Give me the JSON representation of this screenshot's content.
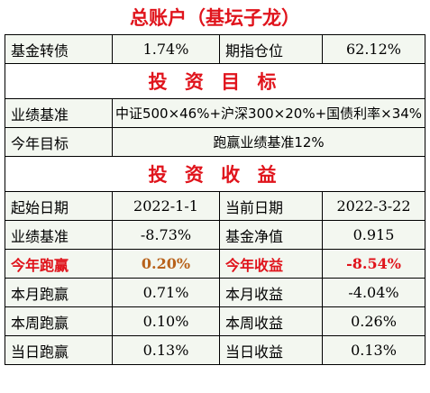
{
  "title": "总账户（基坛子龙）",
  "row1": {
    "label1": "基金转债",
    "value1": "1.74%",
    "label2": "期指仓位",
    "value2": "62.12%"
  },
  "section_target": "投 资 目 标",
  "benchmark": {
    "label": "业绩基准",
    "value": "中证500×46%+沪深300×20%+国债利率×34%"
  },
  "year_goal": {
    "label": "今年目标",
    "value": "跑赢业绩基准12%"
  },
  "section_return": "投 资 收 益",
  "returns": [
    {
      "label1": "起始日期",
      "value1": "2022-1-1",
      "label2": "当前日期",
      "value2": "2022-3-22"
    },
    {
      "label1": "业绩基准",
      "value1": "-8.73%",
      "label2": "基金净值",
      "value2": "0.915"
    },
    {
      "label1": "今年跑赢",
      "value1": "0.20%",
      "label2": "今年收益",
      "value2": "-8.54%"
    },
    {
      "label1": "本月跑赢",
      "value1": "0.71%",
      "label2": "本月收益",
      "value2": "-4.04%"
    },
    {
      "label1": "本周跑赢",
      "value1": "0.10%",
      "label2": "本周收益",
      "value2": "0.26%"
    },
    {
      "label1": "当日跑赢",
      "value1": "0.13%",
      "label2": "当日收益",
      "value2": "0.13%"
    }
  ],
  "colors": {
    "accent_red": "#e0141c",
    "accent_brown": "#b8621b",
    "cell_bg": "#f3f7f0"
  }
}
